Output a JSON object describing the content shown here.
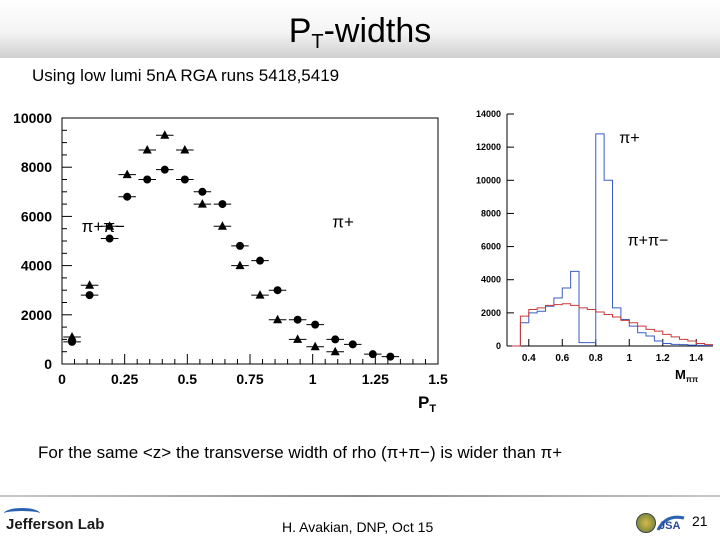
{
  "slide": {
    "title_main": "P",
    "title_sub": "T",
    "title_rest": "-widths",
    "subtitle": "Using low lumi 5nA RGA runs 5418,5419",
    "caption": "For the same <z> the transverse width of rho (π+π−) is wider than π+",
    "footer_center": "H. Avakian, DNP,  Oct 15",
    "page_number": "21",
    "logo_text": "Jefferson Lab",
    "seal_text": "JSA"
  },
  "chart_data": [
    {
      "type": "scatter",
      "xlabel": "P",
      "xlabel_sub": "T",
      "ylabel": "",
      "xlim": [
        0,
        1.5
      ],
      "ylim": [
        0,
        10000
      ],
      "x_ticks": [
        "0",
        "0.25",
        "0.5",
        "0.75",
        "1",
        "1.25",
        "1.5"
      ],
      "y_ticks": [
        "0",
        "2000",
        "4000",
        "6000",
        "8000",
        "10000"
      ],
      "annotations": [
        {
          "text": "π+π−",
          "x": 0.15,
          "y": 5600
        },
        {
          "text": "π+",
          "x": 1.15,
          "y": 5800
        }
      ],
      "series": [
        {
          "marker": "circle",
          "label": "π+π−",
          "x": [
            0.04,
            0.11,
            0.19,
            0.26,
            0.34,
            0.41,
            0.49,
            0.56,
            0.64,
            0.71,
            0.79,
            0.86,
            0.94,
            1.01,
            1.09,
            1.16,
            1.24,
            1.31
          ],
          "y": [
            900,
            2800,
            5100,
            6800,
            7500,
            7900,
            7500,
            7000,
            6500,
            4800,
            4200,
            3000,
            1800,
            1600,
            1000,
            800,
            400,
            300
          ],
          "xerr": 0.035
        },
        {
          "marker": "triangle",
          "label": "π+",
          "x": [
            0.04,
            0.11,
            0.19,
            0.26,
            0.34,
            0.41,
            0.49,
            0.56,
            0.64,
            0.71,
            0.79,
            0.86,
            0.94,
            1.01,
            1.09
          ],
          "y": [
            1100,
            3200,
            5600,
            7700,
            8700,
            9300,
            8700,
            6500,
            5600,
            4000,
            2800,
            1800,
            1000,
            700,
            500
          ],
          "xerr": 0.035
        }
      ]
    },
    {
      "type": "line",
      "xlabel": "M",
      "xlabel_sub": "ππ",
      "xlim": [
        0.27,
        1.5
      ],
      "ylim": [
        0,
        14000
      ],
      "x_ticks": [
        "0.4",
        "0.6",
        "0.8",
        "1",
        "1.2",
        "1.4"
      ],
      "y_ticks": [
        "0",
        "2000",
        "4000",
        "6000",
        "8000",
        "10000",
        "12000",
        "14000"
      ],
      "annotations": [
        {
          "text": "π+",
          "x": 1.0,
          "y": 12500
        },
        {
          "text": "π+π−",
          "x": 1.05,
          "y": 6300
        }
      ],
      "series": [
        {
          "label": "π+",
          "color": "#3b5cc4",
          "x": [
            0.3,
            0.35,
            0.4,
            0.45,
            0.5,
            0.55,
            0.6,
            0.65,
            0.7,
            0.75,
            0.8,
            0.85,
            0.9,
            0.95,
            1.0,
            1.05,
            1.1,
            1.15,
            1.2,
            1.25,
            1.3,
            1.35,
            1.4,
            1.45
          ],
          "y": [
            0,
            1400,
            2000,
            2100,
            2400,
            2900,
            3500,
            4500,
            200,
            200,
            12800,
            10000,
            2300,
            1600,
            1200,
            800,
            600,
            300,
            150,
            100,
            80,
            50,
            40,
            30
          ]
        },
        {
          "label": "π+π−",
          "color": "#c93a3a",
          "x": [
            0.3,
            0.35,
            0.4,
            0.45,
            0.5,
            0.55,
            0.6,
            0.65,
            0.7,
            0.75,
            0.8,
            0.85,
            0.9,
            0.95,
            1.0,
            1.05,
            1.1,
            1.15,
            1.2,
            1.25,
            1.3,
            1.35,
            1.4,
            1.45
          ],
          "y": [
            0,
            1800,
            2200,
            2300,
            2450,
            2500,
            2550,
            2450,
            2300,
            2200,
            2050,
            1900,
            1750,
            1550,
            1400,
            1200,
            1000,
            900,
            700,
            550,
            400,
            300,
            150,
            80
          ]
        }
      ]
    }
  ]
}
